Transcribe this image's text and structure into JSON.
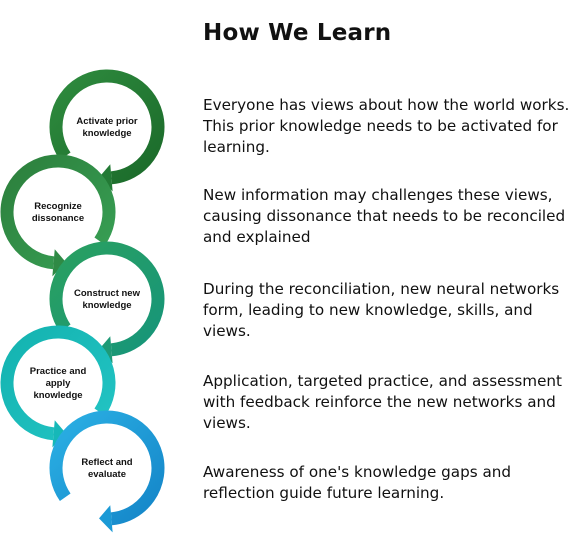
{
  "title": "How We Learn",
  "stages": [
    {
      "label_lines": [
        "Activate prior",
        "knowledge"
      ],
      "color": "#237a35",
      "description": "Everyone has views about how the world works. This prior knowledge needs to be activated for learning."
    },
    {
      "label_lines": [
        "Recognize",
        "dissonance"
      ],
      "color": "#2f8a45",
      "description": "New information may challenges these views, causing dissonance that needs to be reconciled and explained"
    },
    {
      "label_lines": [
        "Construct new",
        "knowledge"
      ],
      "color": "#1e9a76",
      "description": "During the reconciliation, new neural networks form, leading to new knowledge, skills, and views."
    },
    {
      "label_lines": [
        "Practice and",
        "apply",
        "knowledge"
      ],
      "color": "#16b8b8",
      "description": "Application, targeted practice, and assessment with feedback reinforce the new networks and views."
    },
    {
      "label_lines": [
        "Reflect and",
        "evaluate"
      ],
      "color": "#1b9ad6",
      "description": "Awareness of one's knowledge gaps and reflection guide future learning."
    }
  ]
}
